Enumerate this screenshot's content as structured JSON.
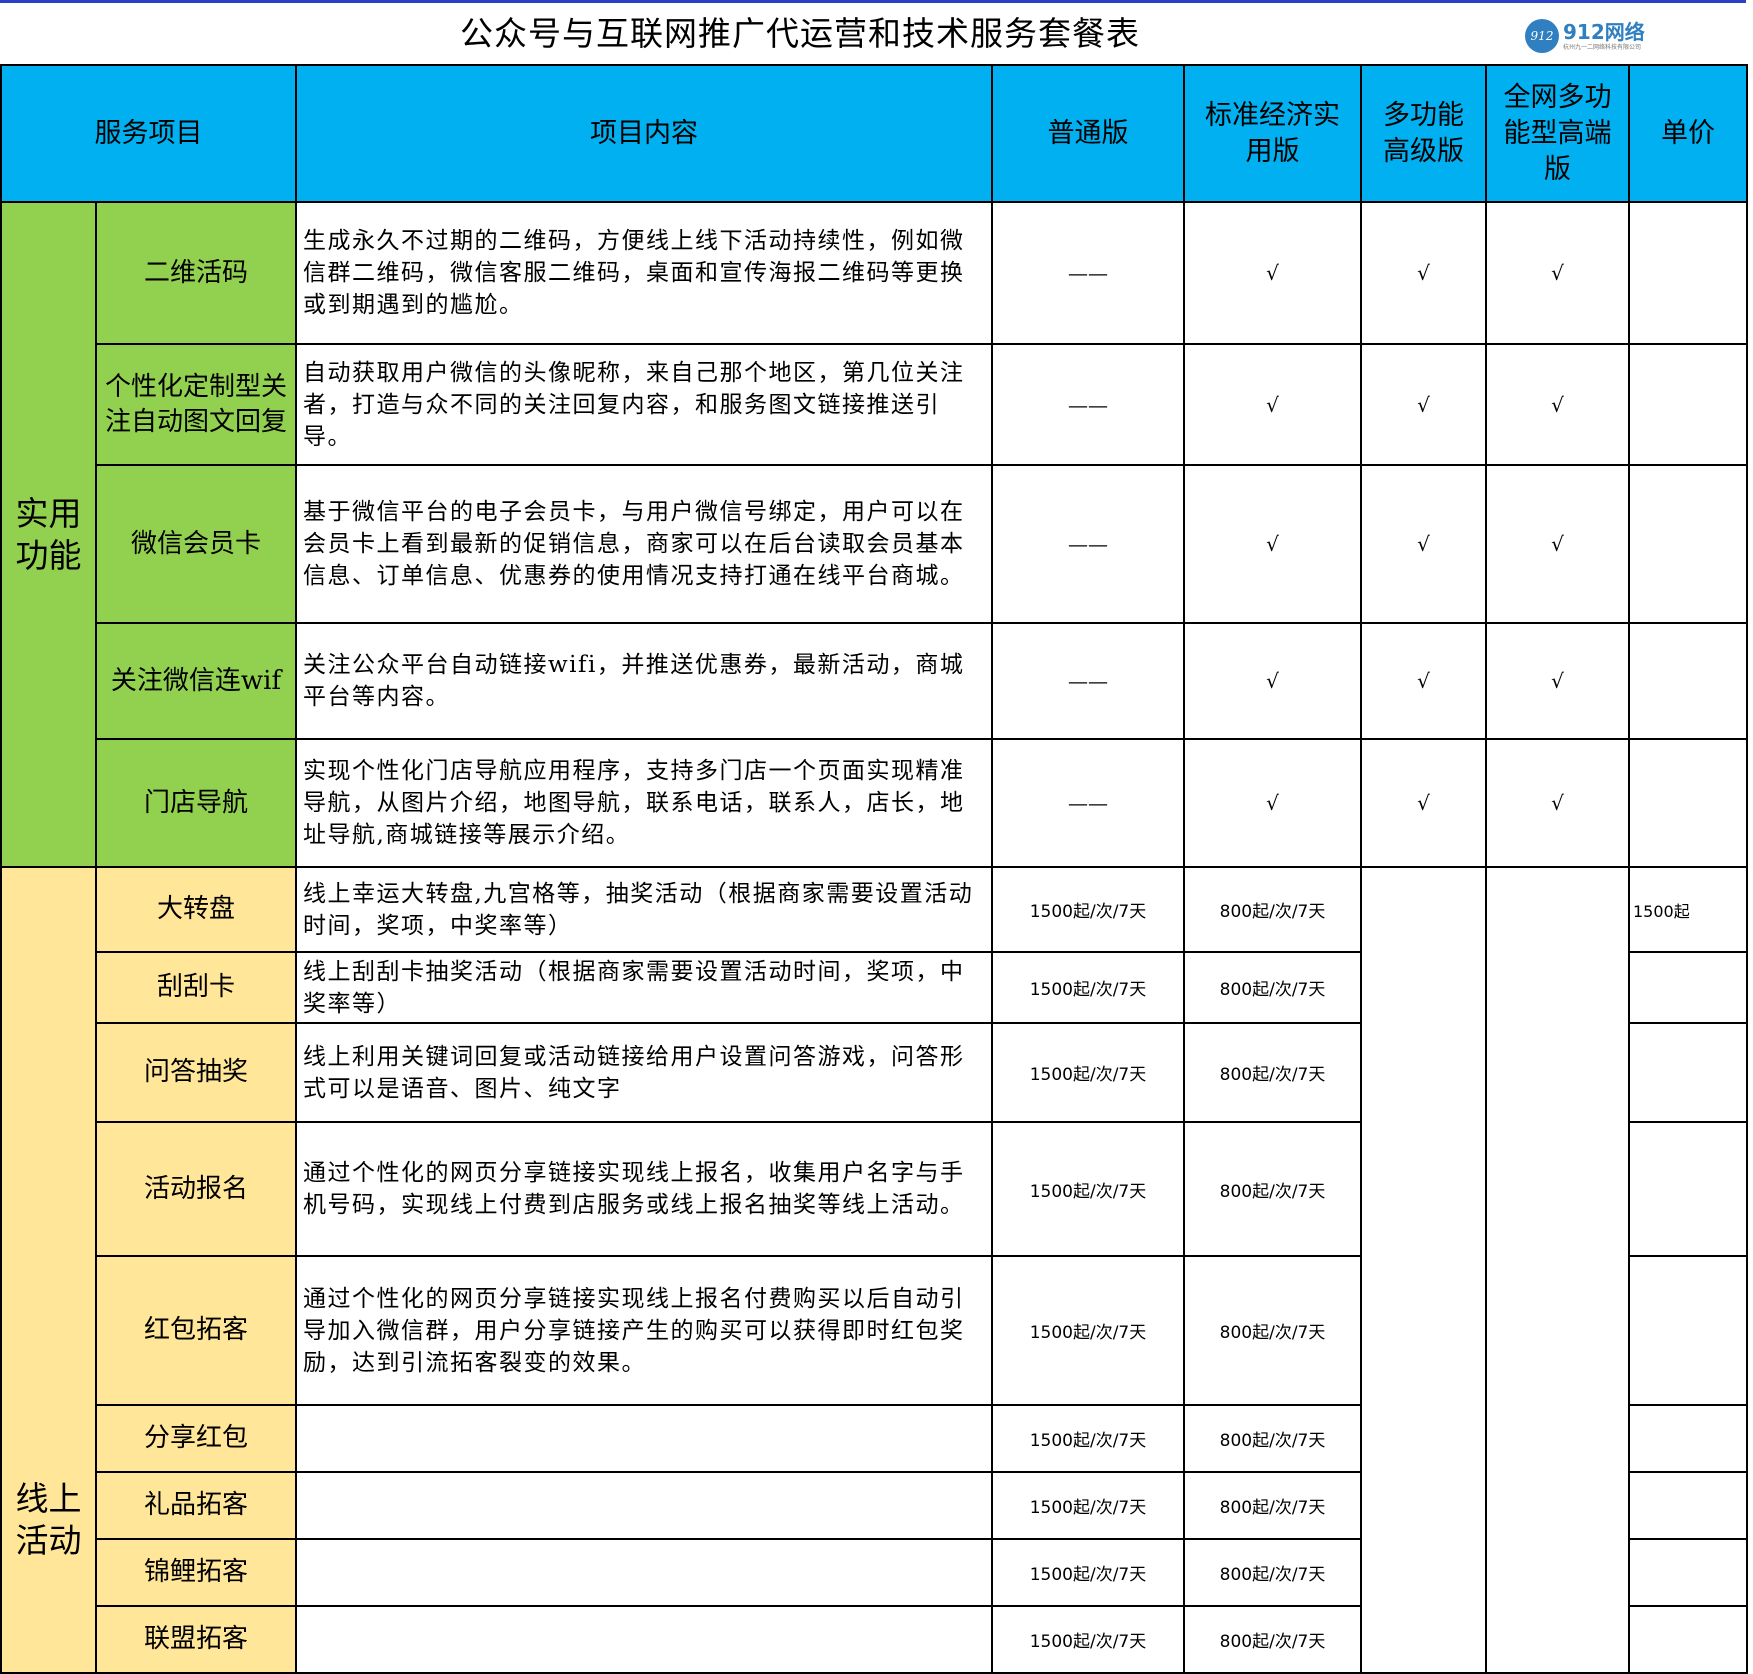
{
  "title": "公众号与互联网推广代运营和技术服务套餐表",
  "logo": {
    "text": "912网络",
    "sub": "杭州九一二网络科技有限公司",
    "mark": "912",
    "color": "#2f7fc1"
  },
  "colors": {
    "header": "#00b0f0",
    "practical": "#92d050",
    "online": "#ffe699"
  },
  "headers": [
    "服务项目",
    "项目内容",
    "普通版",
    "标准经济实用版",
    "多功能高级版",
    "全网多功能型高端版",
    "单价"
  ],
  "sections": [
    {
      "category": "实用功能",
      "rows": [
        {
          "name": "二维活码",
          "desc": "生成永久不过期的二维码，方便线上线下活动持续性，例如微信群二维码，微信客服二维码，桌面和宣传海报二维码等更换或到期遇到的尴尬。",
          "basic": "——",
          "standard": "√",
          "advanced": "√",
          "premium": "√",
          "price": ""
        },
        {
          "name": "个性化定制型关注自动图文回复",
          "desc": "自动获取用户微信的头像昵称，来自己那个地区，第几位关注者，打造与众不同的关注回复内容，和服务图文链接推送引导。",
          "basic": "——",
          "standard": "√",
          "advanced": "√",
          "premium": "√",
          "price": ""
        },
        {
          "name": "微信会员卡",
          "desc": "基于微信平台的电子会员卡，与用户微信号绑定，用户可以在会员卡上看到最新的促销信息，商家可以在后台读取会员基本信息、订单信息、优惠券的使用情况支持打通在线平台商城。",
          "basic": "——",
          "standard": "√",
          "advanced": "√",
          "premium": "√",
          "price": ""
        },
        {
          "name": "关注微信连wif",
          "desc": "关注公众平台自动链接wifi，并推送优惠券，最新活动，商城平台等内容。",
          "basic": "——",
          "standard": "√",
          "advanced": "√",
          "premium": "√",
          "price": ""
        },
        {
          "name": "门店导航",
          "desc": "实现个性化门店导航应用程序，支持多门店一个页面实现精准导航，从图片介绍，地图导航，联系电话，联系人，店长，地址导航,商城链接等展示介绍。",
          "basic": "——",
          "standard": "√",
          "advanced": "√",
          "premium": "√",
          "price": ""
        }
      ]
    },
    {
      "category": "线上活动",
      "rows": [
        {
          "name": "大转盘",
          "desc": "线上幸运大转盘,九宫格等，抽奖活动（根据商家需要设置活动时间，奖项，中奖率等）",
          "basic": "1500起/次/7天",
          "standard": "800起/次/7天",
          "price": "1500起"
        },
        {
          "name": "刮刮卡",
          "desc": "线上刮刮卡抽奖活动（根据商家需要设置活动时间，奖项，中奖率等）",
          "basic": "1500起/次/7天",
          "standard": "800起/次/7天",
          "price": ""
        },
        {
          "name": "问答抽奖",
          "desc": "线上利用关键词回复或活动链接给用户设置问答游戏，问答形式可以是语音、图片、纯文字",
          "basic": "1500起/次/7天",
          "standard": "800起/次/7天",
          "price": ""
        },
        {
          "name": "活动报名",
          "desc": "通过个性化的网页分享链接实现线上报名，收集用户名字与手机号码，实现线上付费到店服务或线上报名抽奖等线上活动。",
          "basic": "1500起/次/7天",
          "standard": "800起/次/7天",
          "price": ""
        },
        {
          "name": "红包拓客",
          "desc": "通过个性化的网页分享链接实现线上报名付费购买以后自动引导加入微信群，用户分享链接产生的购买可以获得即时红包奖励，达到引流拓客裂变的效果。",
          "basic": "1500起/次/7天",
          "standard": "800起/次/7天",
          "price": ""
        },
        {
          "name": "分享红包",
          "desc": "",
          "basic": "1500起/次/7天",
          "standard": "800起/次/7天",
          "price": ""
        },
        {
          "name": "礼品拓客",
          "desc": "",
          "basic": "1500起/次/7天",
          "standard": "800起/次/7天",
          "price": ""
        },
        {
          "name": "锦鲤拓客",
          "desc": "",
          "basic": "1500起/次/7天",
          "standard": "800起/次/7天",
          "price": ""
        },
        {
          "name": "联盟拓客",
          "desc": "",
          "basic": "1500起/次/7天",
          "standard": "800起/次/7天",
          "price": ""
        }
      ]
    }
  ]
}
